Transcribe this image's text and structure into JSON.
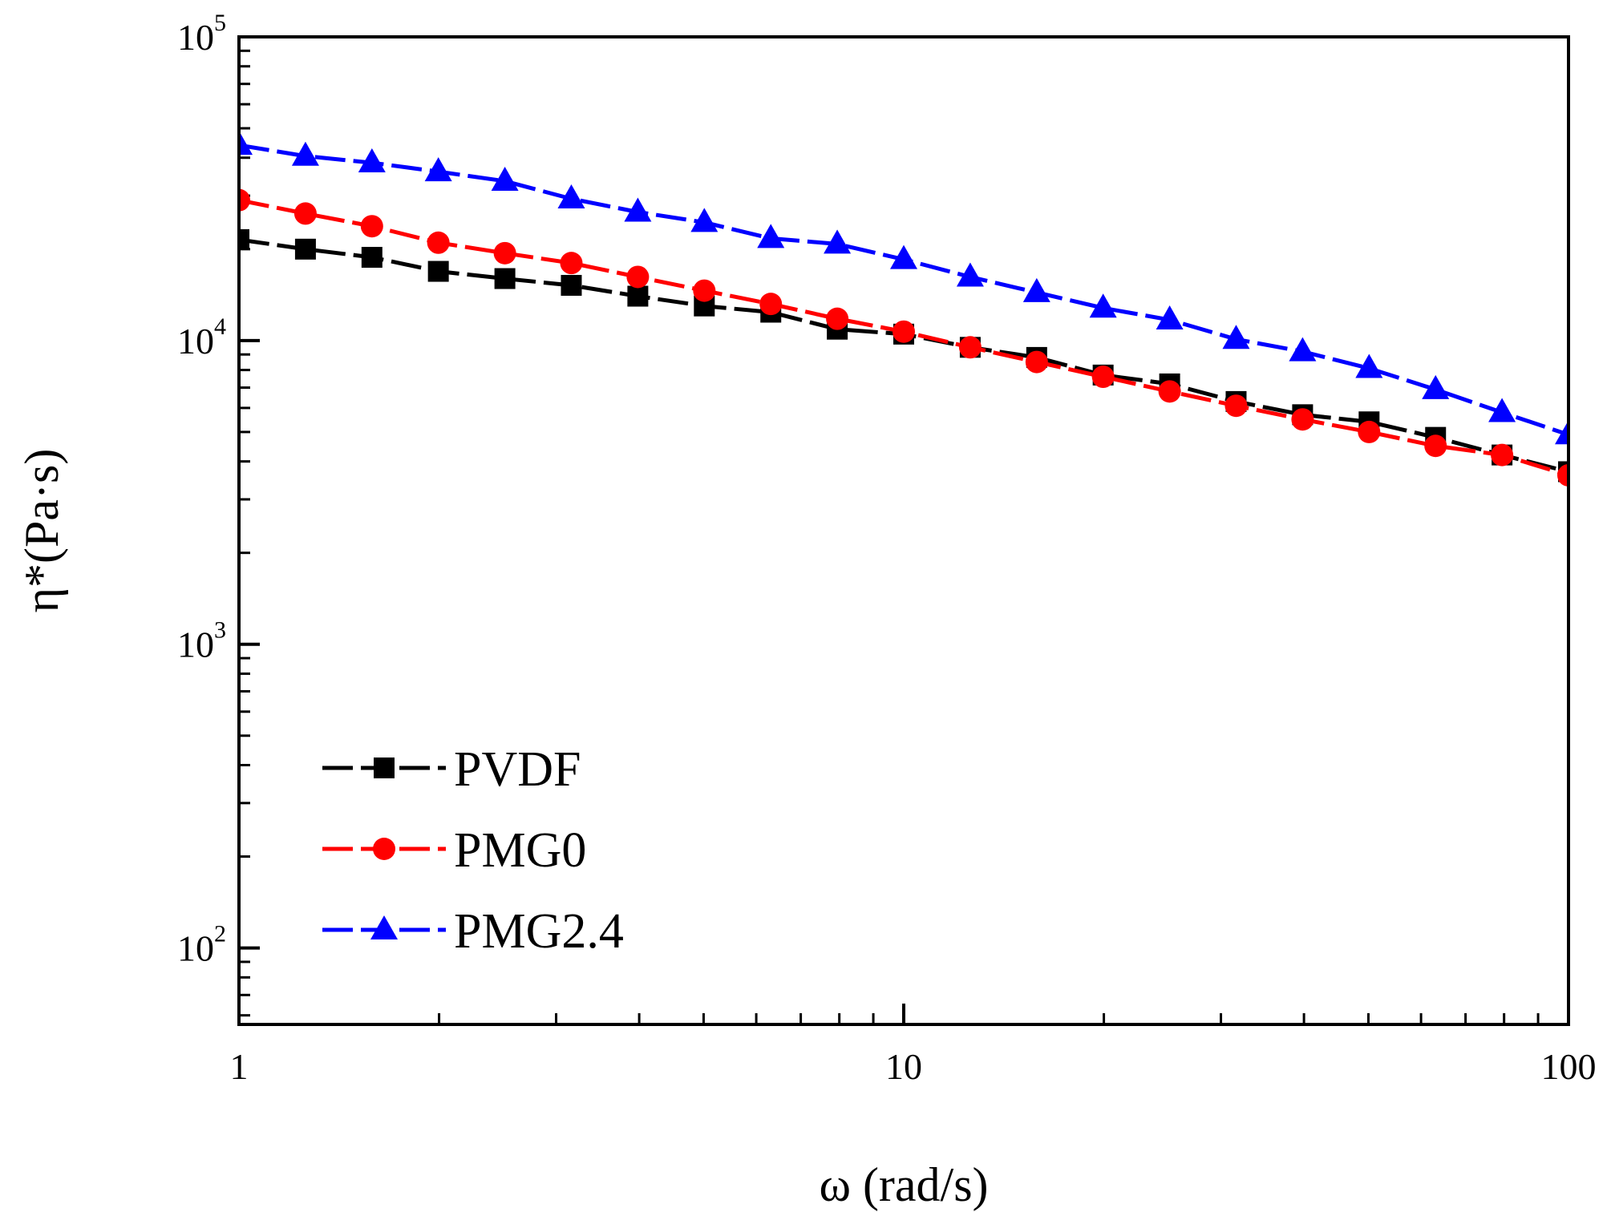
{
  "chart_data": {
    "type": "line",
    "title": "",
    "xlabel": "ω (rad/s)",
    "ylabel": "η*(Pa·s)",
    "xscale": "log",
    "yscale": "log",
    "xlim": [
      1,
      100
    ],
    "ylim": [
      56,
      100000
    ],
    "x_ticks": [
      {
        "value": 1,
        "label": "1"
      },
      {
        "value": 10,
        "label": "10"
      },
      {
        "value": 100,
        "label": "100"
      }
    ],
    "y_ticks": [
      {
        "value": 100,
        "base": "10",
        "exp": "2"
      },
      {
        "value": 1000,
        "base": "10",
        "exp": "3"
      },
      {
        "value": 10000,
        "base": "10",
        "exp": "4"
      },
      {
        "value": 100000,
        "base": "10",
        "exp": "5"
      }
    ],
    "legend_position": "bottom-left",
    "x": [
      1,
      1.259,
      1.585,
      1.995,
      2.512,
      3.162,
      3.981,
      5.012,
      6.31,
      7.943,
      10,
      12.59,
      15.85,
      19.95,
      25.12,
      31.62,
      39.81,
      50.12,
      63.1,
      79.43,
      100
    ],
    "series": [
      {
        "name": "PVDF",
        "color": "#000000",
        "marker": "square",
        "values": [
          21500,
          20000,
          18800,
          16900,
          16000,
          15200,
          14000,
          13000,
          12400,
          10900,
          10500,
          9500,
          8800,
          7700,
          7200,
          6300,
          5700,
          5400,
          4800,
          4200,
          3700
        ]
      },
      {
        "name": "PMG0",
        "color": "#ff0000",
        "marker": "circle",
        "values": [
          29000,
          26200,
          23800,
          21000,
          19400,
          18000,
          16200,
          14600,
          13200,
          11800,
          10700,
          9500,
          8500,
          7600,
          6800,
          6100,
          5500,
          5000,
          4500,
          4200,
          3600
        ]
      },
      {
        "name": "PMG2.4",
        "color": "#0000ff",
        "marker": "triangle",
        "values": [
          44000,
          40500,
          38500,
          36000,
          33500,
          29300,
          26500,
          24500,
          21700,
          20800,
          18500,
          16200,
          14400,
          12800,
          11700,
          10100,
          9200,
          8100,
          6900,
          5800,
          4900
        ]
      }
    ]
  }
}
